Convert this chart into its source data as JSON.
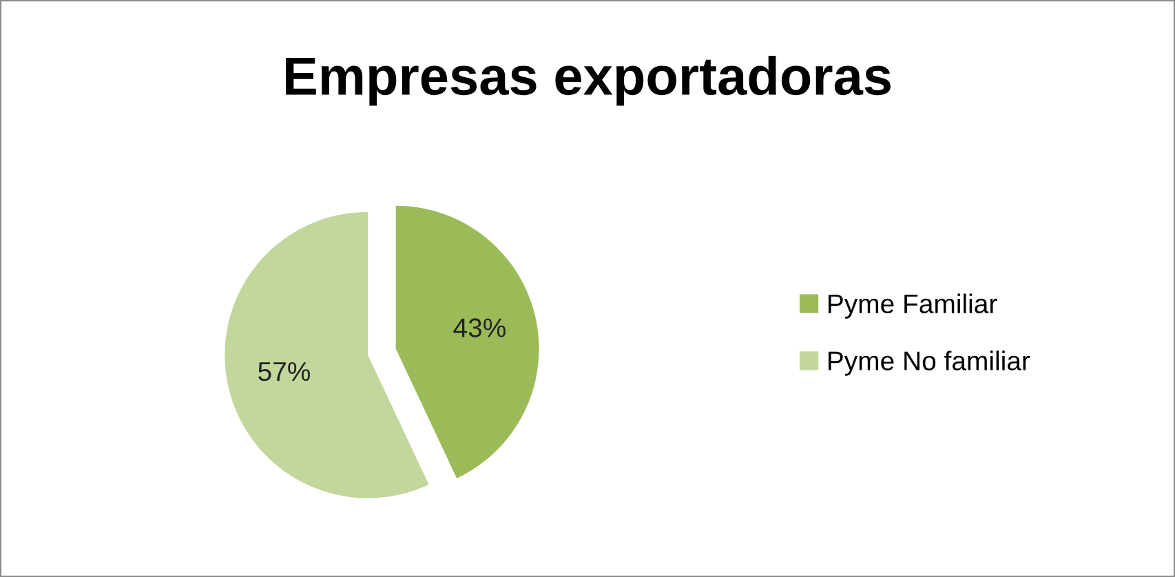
{
  "chart_data": {
    "type": "pie",
    "title": "Empresas exportadoras",
    "categories": [
      "Pyme Familiar",
      "Pyme No familiar"
    ],
    "values": [
      43,
      57
    ],
    "value_labels": [
      "43%",
      "57%"
    ],
    "colors": [
      "#9bbb59",
      "#c3d69b"
    ],
    "legend": "right"
  }
}
